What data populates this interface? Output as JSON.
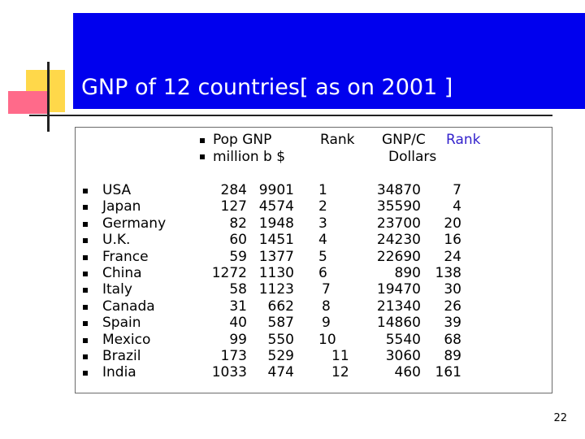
{
  "title": "GNP of 12 countries[ as on 2001 ]",
  "header": {
    "line1": {
      "pop_gnp": "Pop  GNP",
      "rank": "Rank",
      "gnp_c": "GNP/C",
      "rank2": "Rank"
    },
    "line2": {
      "units": "million  b $",
      "dollars": "Dollars"
    }
  },
  "rows": [
    {
      "country": "USA",
      "pop": "284",
      "gnp": "9901",
      "rank": "1",
      "gnpc": "34870",
      "rank2": "7"
    },
    {
      "country": "Japan",
      "pop": "127",
      "gnp": "4574",
      "rank": "2",
      "gnpc": "35590",
      "rank2": "4"
    },
    {
      "country": "Germany",
      "pop": "82",
      "gnp": "1948",
      "rank": "3",
      "gnpc": "23700",
      "rank2": "20"
    },
    {
      "country": "U.K.",
      "pop": "60",
      "gnp": "1451",
      "rank": "4",
      "gnpc": "24230",
      "rank2": "16"
    },
    {
      "country": "France",
      "pop": "59",
      "gnp": "1377",
      "rank": "5",
      "gnpc": "22690",
      "rank2": "24"
    },
    {
      "country": "China",
      "pop": "1272",
      "gnp": "1130",
      "rank": "6",
      "gnpc": "890",
      "rank2": "138"
    },
    {
      "country": "Italy",
      "pop": "58",
      "gnp": "1123",
      "rank": "7",
      "gnpc": "19470",
      "rank2": "30"
    },
    {
      "country": "Canada",
      "pop": "31",
      "gnp": "662",
      "rank": "8",
      "gnpc": "21340",
      "rank2": "26"
    },
    {
      "country": "Spain",
      "pop": "40",
      "gnp": "587",
      "rank": "9",
      "gnpc": "14860",
      "rank2": "39"
    },
    {
      "country": "Mexico",
      "pop": "99",
      "gnp": "550",
      "rank": "10",
      "gnpc": "5540",
      "rank2": "68"
    },
    {
      "country": "Brazil",
      "pop": "173",
      "gnp": "529",
      "rank": "11",
      "gnpc": "3060",
      "rank2": "89"
    },
    {
      "country": "India",
      "pop": "1033",
      "gnp": "474",
      "rank": "12",
      "gnpc": "460",
      "rank2": "161"
    }
  ],
  "page_number": "22"
}
